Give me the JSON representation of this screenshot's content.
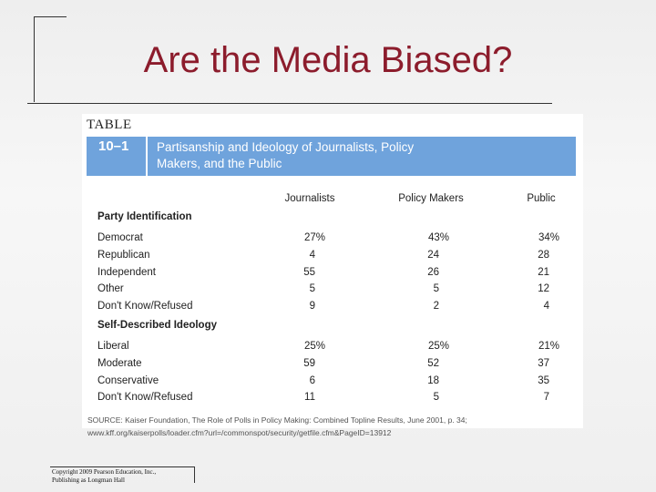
{
  "title": "Are the Media Biased?",
  "table": {
    "label": "TABLE",
    "number": "10–1",
    "caption": [
      "Partisanship and Ideology of Journalists, Policy",
      "Makers, and the Public"
    ],
    "columns": [
      "Journalists",
      "Policy Makers",
      "Public"
    ],
    "sections": [
      {
        "heading": "Party Identification",
        "rows": [
          {
            "label": "Democrat",
            "cells": [
              "27%",
              "43%",
              "34%"
            ]
          },
          {
            "label": "Republican",
            "cells": [
              "4",
              "24",
              "28"
            ]
          },
          {
            "label": "Independent",
            "cells": [
              "55",
              "26",
              "21"
            ]
          },
          {
            "label": "Other",
            "cells": [
              "5",
              "5",
              "12"
            ]
          },
          {
            "label": "Don't Know/Refused",
            "cells": [
              "9",
              "2",
              "4"
            ]
          }
        ]
      },
      {
        "heading": "Self-Described Ideology",
        "rows": [
          {
            "label": "Liberal",
            "cells": [
              "25%",
              "25%",
              "21%"
            ]
          },
          {
            "label": "Moderate",
            "cells": [
              "59",
              "52",
              "37"
            ]
          },
          {
            "label": "Conservative",
            "cells": [
              "6",
              "18",
              "35"
            ]
          },
          {
            "label": "Don't Know/Refused",
            "cells": [
              "11",
              "5",
              "7"
            ]
          }
        ]
      }
    ],
    "source": [
      "SOURCE: Kaiser Foundation, The Role of Polls in Policy Making: Combined Topline Results, June 2001, p. 34;",
      "www.kff.org/kaiserpolls/loader.cfm?url=/commonspot/security/getfile.cfm&PageID=13912"
    ]
  },
  "footer": [
    "Copyright 2009 Pearson Education, Inc.,",
    "Publishing as Longman Hall"
  ]
}
